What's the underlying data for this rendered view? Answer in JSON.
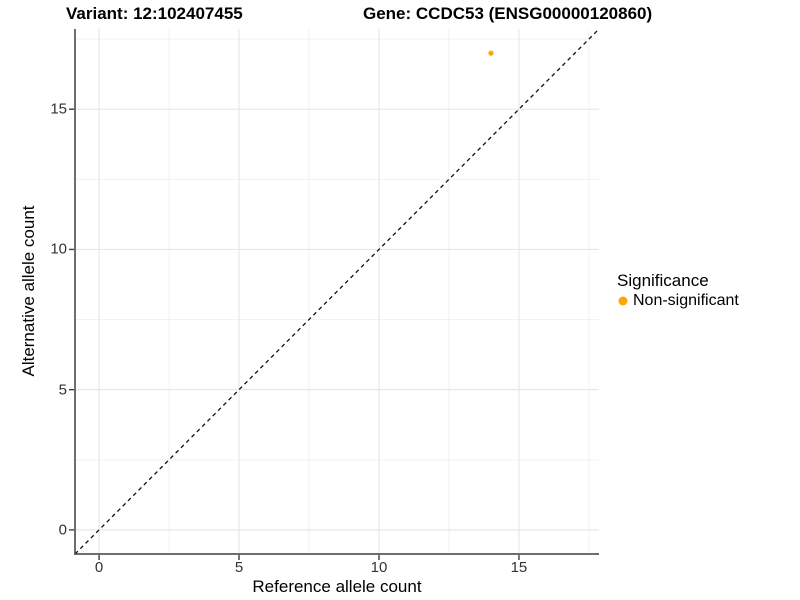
{
  "titles": {
    "variant": "Variant: 12:102407455",
    "gene": "Gene: CCDC53 (ENSG00000120860)"
  },
  "chart_data": {
    "type": "scatter",
    "title_left": "Variant: 12:102407455",
    "title_right": "Gene: CCDC53 (ENSG00000120860)",
    "xlabel": "Reference allele count",
    "ylabel": "Alternative allele count",
    "xlim": [
      -0.86,
      17.86
    ],
    "ylim": [
      -0.86,
      17.86
    ],
    "x_ticks": [
      0,
      5,
      10,
      15
    ],
    "y_ticks": [
      0,
      5,
      10,
      15
    ],
    "x_minor_ticks": [
      2.5,
      7.5,
      12.5,
      17.5
    ],
    "y_minor_ticks": [
      2.5,
      7.5,
      12.5,
      17.5
    ],
    "grid": "major+minor",
    "legend_position": "right",
    "series": [
      {
        "name": "Non-significant",
        "color": "#FFA500",
        "points": [
          {
            "x": 14,
            "y": 17
          }
        ]
      }
    ],
    "reference_line": {
      "type": "identity",
      "style": "dashed",
      "color": "#111111"
    },
    "legend": {
      "title": "Significance",
      "items": [
        {
          "label": "Non-significant",
          "color": "#FFA500"
        }
      ]
    }
  },
  "colors": {
    "background": "#ffffff",
    "axis_line": "#3f3f3f",
    "tick_mark": "#3f3f3f",
    "tick_text": "#333333",
    "grid_major": "#E7E7E7",
    "grid_minor": "#F0F0F0",
    "point": "#FFA500",
    "dashed_line": "#111111"
  }
}
